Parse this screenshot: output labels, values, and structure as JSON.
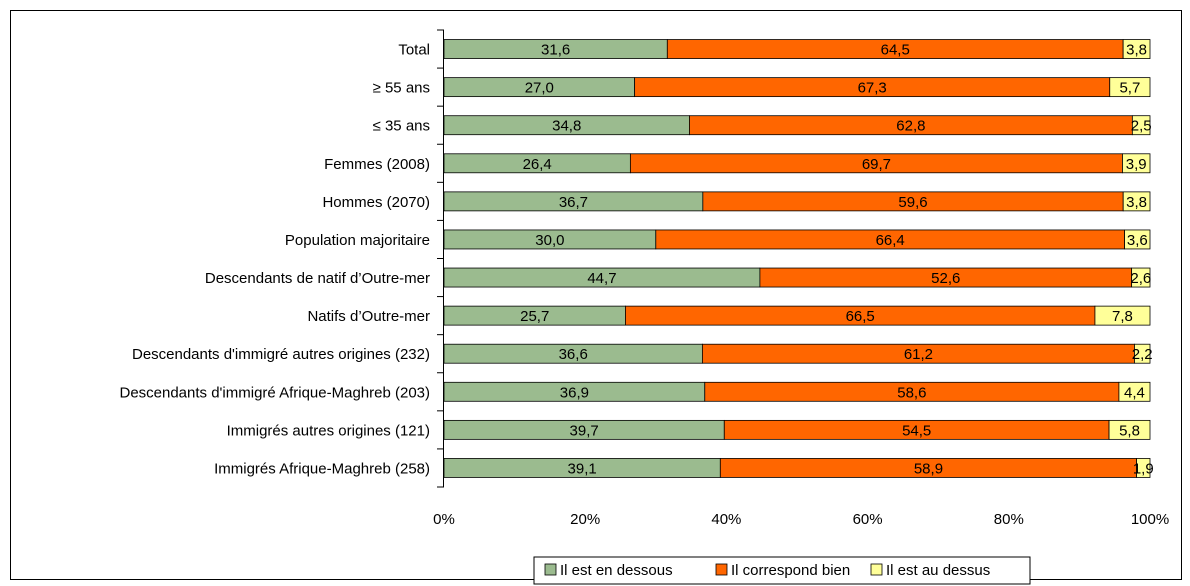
{
  "chart_data": {
    "type": "bar",
    "orientation": "horizontal",
    "stacked": "percent",
    "categories": [
      "Total",
      "≥ 55 ans",
      "≤ 35 ans",
      "Femmes (2008)",
      "Hommes (2070)",
      "Population majoritaire",
      "Descendants de natif d’Outre-mer",
      "Natifs d’Outre-mer",
      "Descendants d'immigré autres origines (232)",
      "Descendants d'immigré Afrique-Maghreb (203)",
      "Immigrés autres origines (121)",
      "Immigrés Afrique-Maghreb (258)"
    ],
    "series": [
      {
        "name": "Il est en dessous",
        "color": "#9bbb8f",
        "values": [
          31.6,
          27.0,
          34.8,
          26.4,
          36.7,
          30.0,
          44.7,
          25.7,
          36.6,
          36.9,
          39.7,
          39.1
        ],
        "labels": [
          "31,6",
          "27,0",
          "34,8",
          "26,4",
          "36,7",
          "30,0",
          "44,7",
          "25,7",
          "36,6",
          "36,9",
          "39,7",
          "39,1"
        ]
      },
      {
        "name": "Il correspond bien",
        "color": "#ff6600",
        "values": [
          64.5,
          67.3,
          62.8,
          69.7,
          59.6,
          66.4,
          52.6,
          66.5,
          61.2,
          58.6,
          54.5,
          58.9
        ],
        "labels": [
          "64,5",
          "67,3",
          "62,8",
          "69,7",
          "59,6",
          "66,4",
          "52,6",
          "66,5",
          "61,2",
          "58,6",
          "54,5",
          "58,9"
        ]
      },
      {
        "name": "Il est au dessus",
        "color": "#ffff99",
        "values": [
          3.8,
          5.7,
          2.5,
          3.9,
          3.8,
          3.6,
          2.6,
          7.8,
          2.2,
          4.4,
          5.8,
          1.9
        ],
        "labels": [
          "3,8",
          "5,7",
          "2,5",
          "3,9",
          "3,8",
          "3,6",
          "2,6",
          "7,8",
          "2,2",
          "4,4",
          "5,8",
          "1,9"
        ]
      }
    ],
    "xticks": [
      "0%",
      "20%",
      "40%",
      "60%",
      "80%",
      "100%"
    ],
    "xlim": [
      0,
      100
    ],
    "grid": false,
    "legend_position": "bottom"
  }
}
